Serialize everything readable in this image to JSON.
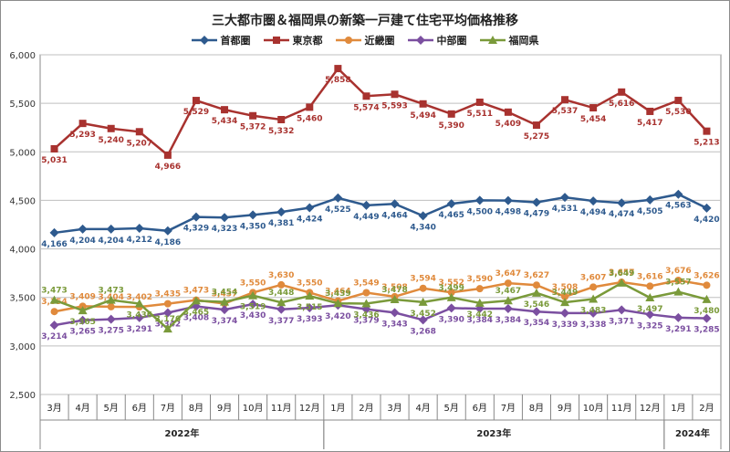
{
  "chart_data": {
    "type": "line",
    "title": "三大都市圏＆福岡県の新築一戸建て住宅平均価格推移",
    "ylim": [
      2500,
      6000
    ],
    "yticks": [
      "2,500",
      "3,000",
      "3,500",
      "4,000",
      "4,500",
      "5,000",
      "5,500",
      "6,000"
    ],
    "grid": "horizontal",
    "legend_position": "top",
    "categories": [
      "3月",
      "4月",
      "5月",
      "6月",
      "7月",
      "8月",
      "9月",
      "10月",
      "11月",
      "12月",
      "1月",
      "2月",
      "3月",
      "4月",
      "5月",
      "6月",
      "7月",
      "8月",
      "9月",
      "10月",
      "11月",
      "12月",
      "1月",
      "2月"
    ],
    "year_groups": [
      {
        "label": "2022年",
        "start": 0,
        "end": 9
      },
      {
        "label": "2023年",
        "start": 10,
        "end": 21
      },
      {
        "label": "2024年",
        "start": 22,
        "end": 23
      }
    ],
    "series": [
      {
        "name": "首都圏",
        "color": "#2e5a8e",
        "marker": "diamond",
        "label_pos": "below",
        "values": [
          4166,
          4204,
          4204,
          4212,
          4186,
          4329,
          4323,
          4350,
          4381,
          4424,
          4525,
          4449,
          4464,
          4340,
          4465,
          4500,
          4498,
          4479,
          4531,
          4494,
          4474,
          4505,
          4563,
          4420
        ],
        "labels": [
          "4,166",
          "4,204",
          "4,204",
          "4,212",
          "4,186",
          "4,329",
          "4,323",
          "4,350",
          "4,381",
          "4,424",
          "4,525",
          "4,449",
          "4,464",
          "4,340",
          "4,465",
          "4,500",
          "4,498",
          "4,479",
          "4,531",
          "4,494",
          "4,474",
          "4,505",
          "4,563",
          "4,420"
        ]
      },
      {
        "name": "東京都",
        "color": "#a8322f",
        "marker": "square",
        "label_pos": "below",
        "values": [
          5031,
          5293,
          5240,
          5207,
          4966,
          5529,
          5434,
          5372,
          5332,
          5460,
          5858,
          5574,
          5593,
          5494,
          5390,
          5511,
          5409,
          5275,
          5537,
          5454,
          5616,
          5417,
          5530,
          5213
        ],
        "labels": [
          "5,031",
          "5,293",
          "5,240",
          "5,207",
          "4,966",
          "5,529",
          "5,434",
          "5,372",
          "5,332",
          "5,460",
          "5,858",
          "5,574",
          "5,593",
          "5,494",
          "5,390",
          "5,511",
          "5,409",
          "5,275",
          "5,537",
          "5,454",
          "5,616",
          "5,417",
          "5,530",
          "5,213"
        ]
      },
      {
        "name": "近畿圏",
        "color": "#e08a3c",
        "marker": "circle",
        "label_pos": "above",
        "values": [
          3354,
          3409,
          3404,
          3402,
          3435,
          3473,
          3437,
          3550,
          3630,
          3550,
          3464,
          3549,
          3508,
          3594,
          3552,
          3590,
          3647,
          3627,
          3508,
          3607,
          3657,
          3616,
          3676,
          3626
        ],
        "labels": [
          "3,354",
          "3,409",
          "3,404",
          "3,402",
          "3,435",
          "3,473",
          "3,437",
          "3,550",
          "3,630",
          "3,550",
          "3,464",
          "3,549",
          "3,508",
          "3,594",
          "3,552",
          "3,590",
          "3,647",
          "3,627",
          "3,508",
          "3,607",
          "3,657",
          "3,616",
          "3,676",
          "3,626"
        ]
      },
      {
        "name": "中部圏",
        "color": "#7b4fa0",
        "marker": "diamond",
        "label_pos": "below",
        "values": [
          3214,
          3265,
          3275,
          3291,
          3342,
          3408,
          3374,
          3430,
          3377,
          3393,
          3420,
          3379,
          3343,
          3268,
          3390,
          3384,
          3384,
          3354,
          3339,
          3338,
          3371,
          3325,
          3291,
          3285
        ],
        "labels": [
          "3,214",
          "3,265",
          "3,275",
          "3,291",
          "3,342",
          "3,408",
          "3,374",
          "3,430",
          "3,377",
          "3,393",
          "3,420",
          "3,379",
          "3,343",
          "3,268",
          "3,390",
          "3,384",
          "3,384",
          "3,354",
          "3,339",
          "3,338",
          "3,371",
          "3,325",
          "3,291",
          "3,285"
        ]
      },
      {
        "name": "福岡県",
        "color": "#7a9a3a",
        "marker": "triangle",
        "label_pos": "mixed",
        "values": [
          3473,
          3365,
          3473,
          3436,
          3176,
          3465,
          3454,
          3519,
          3448,
          3515,
          3439,
          3436,
          3478,
          3452,
          3499,
          3442,
          3467,
          3546,
          3449,
          3483,
          3649,
          3497,
          3557,
          3480
        ],
        "labels": [
          "3,473",
          "3,365",
          "3,473",
          "3,436",
          "3,176",
          "3,465",
          "3,454",
          "3,519",
          "3,448",
          "3,515",
          "3,439",
          "3,436",
          "3,478",
          "3,452",
          "3,499",
          "3,442",
          "3,467",
          "3,546",
          "3,449",
          "3,483",
          "3,649",
          "3,497",
          "3,557",
          "3,480"
        ]
      }
    ]
  }
}
